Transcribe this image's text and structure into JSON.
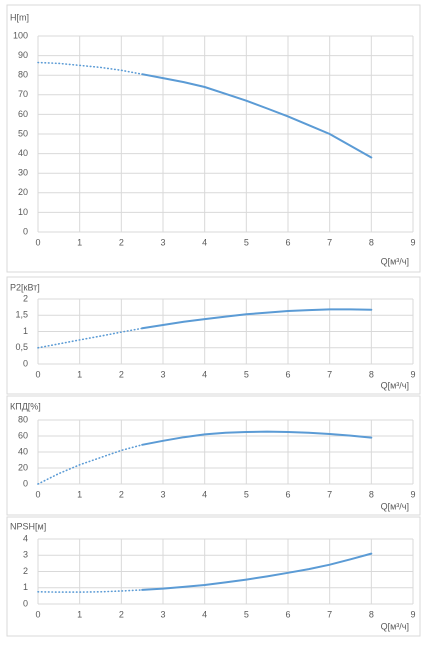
{
  "chart_data": [
    {
      "type": "line",
      "title": "H[m]",
      "xlabel": "Q[м³/ч]",
      "xlim": [
        0,
        9
      ],
      "xticks": [
        0,
        1,
        2,
        3,
        4,
        5,
        6,
        7,
        8,
        9
      ],
      "ylim": [
        0,
        100
      ],
      "yticks": [
        0,
        10,
        20,
        30,
        40,
        50,
        60,
        70,
        80,
        90,
        100
      ],
      "grid": true,
      "series": [
        {
          "color": "#5b9bd5",
          "style": "dotted",
          "x": [
            0,
            0.5,
            1,
            1.5,
            2,
            2.5
          ],
          "values": [
            86.5,
            86,
            85,
            84,
            82.5,
            80.5
          ]
        },
        {
          "color": "#5b9bd5",
          "style": "solid",
          "x": [
            2.5,
            3,
            3.5,
            4,
            4.5,
            5,
            5.5,
            6,
            6.5,
            7,
            7.5,
            8
          ],
          "values": [
            80.5,
            78.5,
            76.5,
            74,
            70.5,
            67,
            63,
            59,
            54.5,
            50,
            44,
            38
          ]
        }
      ]
    },
    {
      "type": "line",
      "title": "P2[кВт]",
      "xlabel": "Q[м³/ч]",
      "xlim": [
        0,
        9
      ],
      "xticks": [
        0,
        1,
        2,
        3,
        4,
        5,
        6,
        7,
        8,
        9
      ],
      "ylim": [
        0,
        2
      ],
      "yticks": [
        0,
        {
          "value": 0.5,
          "label": "0,5"
        },
        1,
        {
          "value": 1.5,
          "label": "1,5"
        },
        2
      ],
      "grid": true,
      "series": [
        {
          "color": "#5b9bd5",
          "style": "dotted",
          "x": [
            0,
            0.5,
            1,
            1.5,
            2,
            2.5
          ],
          "values": [
            0.5,
            0.62,
            0.74,
            0.86,
            0.98,
            1.1
          ]
        },
        {
          "color": "#5b9bd5",
          "style": "solid",
          "x": [
            2.5,
            3,
            3.5,
            4,
            4.5,
            5,
            5.5,
            6,
            6.5,
            7,
            7.5,
            8
          ],
          "values": [
            1.1,
            1.2,
            1.3,
            1.38,
            1.46,
            1.53,
            1.58,
            1.63,
            1.66,
            1.68,
            1.68,
            1.67
          ]
        }
      ]
    },
    {
      "type": "line",
      "title": "КПД[%]",
      "xlabel": "Q[м³/ч]",
      "xlim": [
        0,
        9
      ],
      "xticks": [
        0,
        1,
        2,
        3,
        4,
        5,
        6,
        7,
        8,
        9
      ],
      "ylim": [
        0,
        80
      ],
      "yticks": [
        0,
        20,
        40,
        60,
        80
      ],
      "grid": true,
      "series": [
        {
          "color": "#5b9bd5",
          "style": "dotted",
          "x": [
            0,
            0.5,
            1,
            1.5,
            2,
            2.5
          ],
          "values": [
            0,
            13,
            24,
            33,
            42,
            49
          ]
        },
        {
          "color": "#5b9bd5",
          "style": "solid",
          "x": [
            2.5,
            3,
            3.5,
            4,
            4.5,
            5,
            5.5,
            6,
            6.5,
            7,
            7.5,
            8
          ],
          "values": [
            49,
            54,
            58.5,
            62,
            64,
            65,
            65.5,
            65,
            64,
            62.5,
            60.5,
            58
          ]
        }
      ]
    },
    {
      "type": "line",
      "title": "NPSH[м]",
      "xlabel": "Q[м³/ч]",
      "xlim": [
        0,
        9
      ],
      "xticks": [
        0,
        1,
        2,
        3,
        4,
        5,
        6,
        7,
        8,
        9
      ],
      "ylim": [
        0,
        4
      ],
      "yticks": [
        0,
        1,
        2,
        3,
        4
      ],
      "grid": true,
      "series": [
        {
          "color": "#5b9bd5",
          "style": "dotted",
          "x": [
            0,
            0.5,
            1,
            1.5,
            2,
            2.5
          ],
          "values": [
            0.75,
            0.73,
            0.73,
            0.75,
            0.8,
            0.87
          ]
        },
        {
          "color": "#5b9bd5",
          "style": "solid",
          "x": [
            2.5,
            3,
            3.5,
            4,
            4.5,
            5,
            5.5,
            6,
            6.5,
            7,
            7.5,
            8
          ],
          "values": [
            0.87,
            0.95,
            1.05,
            1.17,
            1.33,
            1.5,
            1.7,
            1.92,
            2.15,
            2.42,
            2.75,
            3.1
          ]
        }
      ]
    }
  ]
}
